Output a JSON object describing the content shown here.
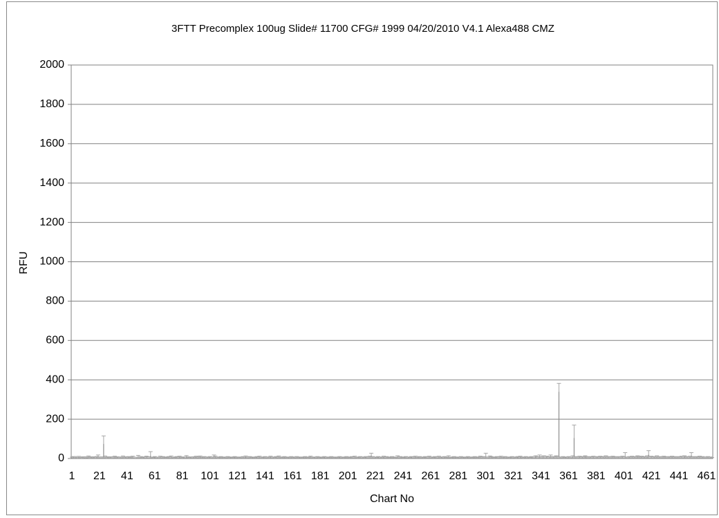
{
  "chart_data": {
    "type": "bar",
    "title": "3FTT Precomplex 100ug Slide# 11700 CFG# 1999 04/20/2010 V4.1 Alexa488  CMZ",
    "x_label": "Chart No",
    "y_label": "RFU",
    "categories": [
      "1",
      null,
      null,
      null,
      null,
      null,
      null,
      null,
      null,
      null,
      null,
      null,
      null,
      null,
      null,
      null,
      null,
      null,
      null,
      null,
      "21",
      null,
      null,
      null,
      null,
      null,
      null,
      null,
      null,
      null,
      null,
      null,
      null,
      null,
      null,
      null,
      null,
      null,
      null,
      null,
      "41",
      null,
      null,
      null,
      null,
      null,
      null,
      null,
      null,
      null,
      null,
      null,
      null,
      null,
      null,
      null,
      null,
      null,
      null,
      null,
      "61",
      null,
      null,
      null,
      null,
      null,
      null,
      null,
      null,
      null,
      null,
      null,
      null,
      null,
      null,
      null,
      null,
      null,
      null,
      null,
      "81",
      null,
      null,
      null,
      null,
      null,
      null,
      null,
      null,
      null,
      null,
      null,
      null,
      null,
      null,
      null,
      null,
      null,
      null,
      null,
      "101",
      null,
      null,
      null,
      null,
      null,
      null,
      null,
      null,
      null,
      null,
      null,
      null,
      null,
      null,
      null,
      null,
      null,
      null,
      null,
      "121",
      null,
      null,
      null,
      null,
      null,
      null,
      null,
      null,
      null,
      null,
      null,
      null,
      null,
      null,
      null,
      null,
      null,
      null,
      null,
      "141",
      null,
      null,
      null,
      null,
      null,
      null,
      null,
      null,
      null,
      null,
      null,
      null,
      null,
      null,
      null,
      null,
      null,
      null,
      null,
      "161",
      null,
      null,
      null,
      null,
      null,
      null,
      null,
      null,
      null,
      null,
      null,
      null,
      null,
      null,
      null,
      null,
      null,
      null,
      null,
      "181",
      null,
      null,
      null,
      null,
      null,
      null,
      null,
      null,
      null,
      null,
      null,
      null,
      null,
      null,
      null,
      null,
      null,
      null,
      null,
      "201",
      null,
      null,
      null,
      null,
      null,
      null,
      null,
      null,
      null,
      null,
      null,
      null,
      null,
      null,
      null,
      null,
      null,
      null,
      null,
      "221",
      null,
      null,
      null,
      null,
      null,
      null,
      null,
      null,
      null,
      null,
      null,
      null,
      null,
      null,
      null,
      null,
      null,
      null,
      null,
      "241",
      null,
      null,
      null,
      null,
      null,
      null,
      null,
      null,
      null,
      null,
      null,
      null,
      null,
      null,
      null,
      null,
      null,
      null,
      null,
      "261",
      null,
      null,
      null,
      null,
      null,
      null,
      null,
      null,
      null,
      null,
      null,
      null,
      null,
      null,
      null,
      null,
      null,
      null,
      null,
      "281",
      null,
      null,
      null,
      null,
      null,
      null,
      null,
      null,
      null,
      null,
      null,
      null,
      null,
      null,
      null,
      null,
      null,
      null,
      null,
      "301",
      null,
      null,
      null,
      null,
      null,
      null,
      null,
      null,
      null,
      null,
      null,
      null,
      null,
      null,
      null,
      null,
      null,
      null,
      null,
      "321",
      null,
      null,
      null,
      null,
      null,
      null,
      null,
      null,
      null,
      null,
      null,
      null,
      null,
      null,
      null,
      null,
      null,
      null,
      null,
      "341",
      null,
      null,
      null,
      null,
      null,
      null,
      null,
      null,
      null,
      null,
      null,
      null,
      null,
      null,
      null,
      null,
      null,
      null,
      null,
      "361",
      null,
      null,
      null,
      null,
      null,
      null,
      null,
      null,
      null,
      null,
      null,
      null,
      null,
      null,
      null,
      null,
      null,
      null,
      null,
      "381",
      null,
      null,
      null,
      null,
      null,
      null,
      null,
      null,
      null,
      null,
      null,
      null,
      null,
      null,
      null,
      null,
      null,
      null,
      null,
      "401",
      null,
      null,
      null,
      null,
      null,
      null,
      null,
      null,
      null,
      null,
      null,
      null,
      null,
      null,
      null,
      null,
      null,
      null,
      null,
      "421",
      null,
      null,
      null,
      null,
      null,
      null,
      null,
      null,
      null,
      null,
      null,
      null,
      null,
      null,
      null,
      null,
      null,
      null,
      null,
      "441",
      null,
      null,
      null,
      null,
      null,
      null,
      null,
      null,
      null,
      null,
      null,
      null,
      null,
      null,
      null,
      null,
      null,
      null,
      null,
      "461",
      null,
      null,
      null,
      null
    ],
    "values": [
      4,
      6,
      3,
      5,
      2,
      7,
      4,
      3,
      5,
      6,
      2,
      4,
      8,
      3,
      5,
      4,
      6,
      3,
      7,
      12,
      5,
      4,
      6,
      75,
      8,
      3,
      5,
      4,
      6,
      3,
      5,
      7,
      4,
      6,
      3,
      5,
      4,
      8,
      3,
      5,
      4,
      6,
      3,
      5,
      7,
      4,
      3,
      5,
      10,
      4,
      6,
      3,
      5,
      4,
      7,
      6,
      5,
      15,
      4,
      3,
      6,
      4,
      5,
      3,
      7,
      4,
      6,
      5,
      3,
      4,
      6,
      5,
      8,
      4,
      3,
      5,
      6,
      4,
      7,
      5,
      3,
      5,
      4,
      9,
      6,
      3,
      5,
      4,
      6,
      3,
      7,
      4,
      5,
      8,
      3,
      5,
      6,
      4,
      5,
      3,
      6,
      4,
      5,
      10,
      7,
      4,
      3,
      5,
      6,
      4,
      3,
      5,
      4,
      6,
      3,
      5,
      4,
      3,
      6,
      5,
      4,
      3,
      5,
      4,
      6,
      3,
      8,
      5,
      4,
      6,
      3,
      5,
      4,
      3,
      6,
      5,
      7,
      4,
      3,
      5,
      6,
      4,
      5,
      3,
      7,
      4,
      5,
      3,
      6,
      4,
      8,
      5,
      3,
      4,
      6,
      5,
      3,
      4,
      5,
      6,
      3,
      5,
      4,
      6,
      3,
      5,
      4,
      3,
      5,
      6,
      4,
      3,
      5,
      7,
      4,
      3,
      5,
      4,
      6,
      3,
      5,
      4,
      3,
      6,
      4,
      5,
      3,
      4,
      6,
      5,
      3,
      4,
      5,
      3,
      6,
      4,
      5,
      3,
      4,
      6,
      5,
      3,
      4,
      6,
      5,
      7,
      4,
      3,
      5,
      6,
      4,
      5,
      3,
      6,
      4,
      5,
      7,
      15,
      6,
      4,
      5,
      3,
      6,
      4,
      5,
      3,
      7,
      4,
      6,
      5,
      3,
      4,
      6,
      5,
      3,
      4,
      8,
      5,
      6,
      4,
      3,
      5,
      6,
      4,
      5,
      3,
      6,
      4,
      5,
      7,
      3,
      4,
      6,
      5,
      4,
      3,
      6,
      5,
      4,
      7,
      5,
      4,
      3,
      6,
      5,
      4,
      7,
      3,
      5,
      4,
      6,
      3,
      5,
      8,
      4,
      3,
      5,
      6,
      4,
      3,
      5,
      4,
      6,
      3,
      5,
      4,
      3,
      6,
      5,
      4,
      3,
      5,
      6,
      4,
      3,
      5,
      7,
      4,
      6,
      5,
      12,
      4,
      5,
      8,
      6,
      4,
      3,
      5,
      6,
      4,
      5,
      7,
      3,
      4,
      6,
      5,
      4,
      3,
      5,
      6,
      4,
      5,
      3,
      6,
      4,
      7,
      5,
      3,
      4,
      6,
      5,
      4,
      3,
      6,
      5,
      4,
      8,
      6,
      5,
      10,
      6,
      5,
      8,
      4,
      7,
      5,
      6,
      10,
      4,
      6,
      5,
      8,
      6,
      340,
      5,
      4,
      6,
      3,
      5,
      4,
      6,
      5,
      4,
      8,
      105,
      6,
      5,
      4,
      7,
      5,
      6,
      4,
      8,
      6,
      5,
      4,
      6,
      5,
      7,
      4,
      5,
      6,
      4,
      7,
      5,
      6,
      4,
      8,
      5,
      6,
      4,
      5,
      7,
      6,
      4,
      5,
      6,
      4,
      5,
      7,
      6,
      10,
      5,
      4,
      6,
      5,
      7,
      4,
      6,
      5,
      8,
      6,
      4,
      7,
      5,
      6,
      4,
      8,
      20,
      6,
      7,
      5,
      6,
      4,
      8,
      5,
      6,
      4,
      5,
      7,
      6,
      4,
      5,
      6,
      4,
      7,
      5,
      6,
      4,
      5,
      6,
      5,
      7,
      4,
      8,
      6,
      5,
      4,
      7,
      15,
      6,
      5,
      4,
      6,
      5,
      7,
      4,
      6,
      5,
      4,
      5,
      6,
      4,
      5,
      3
    ],
    "errors": [
      3,
      4,
      2,
      5,
      3,
      4,
      2,
      3,
      4,
      3,
      2,
      4,
      5,
      3,
      4,
      2,
      3,
      4,
      3,
      6,
      3,
      4,
      2,
      40,
      5,
      3,
      4,
      2,
      3,
      4,
      3,
      5,
      2,
      3,
      4,
      3,
      2,
      5,
      3,
      4,
      3,
      4,
      2,
      3,
      5,
      3,
      4,
      2,
      6,
      3,
      4,
      2,
      3,
      4,
      5,
      3,
      4,
      20,
      3,
      2,
      4,
      3,
      2,
      3,
      5,
      3,
      4,
      3,
      2,
      3,
      4,
      3,
      5,
      3,
      2,
      3,
      4,
      3,
      5,
      3,
      2,
      3,
      4,
      6,
      3,
      2,
      3,
      4,
      3,
      2,
      5,
      3,
      4,
      5,
      2,
      3,
      4,
      3,
      3,
      2,
      4,
      3,
      3,
      8,
      5,
      3,
      2,
      3,
      4,
      3,
      2,
      3,
      3,
      4,
      2,
      3,
      3,
      2,
      4,
      3,
      3,
      2,
      3,
      3,
      4,
      2,
      5,
      3,
      3,
      4,
      2,
      3,
      3,
      2,
      4,
      3,
      5,
      3,
      2,
      3,
      4,
      3,
      3,
      2,
      5,
      3,
      3,
      2,
      4,
      3,
      5,
      3,
      2,
      3,
      4,
      3,
      2,
      3,
      3,
      4,
      2,
      3,
      3,
      4,
      2,
      3,
      3,
      2,
      3,
      4,
      3,
      2,
      3,
      5,
      3,
      2,
      3,
      3,
      4,
      2,
      3,
      3,
      2,
      4,
      3,
      3,
      2,
      3,
      4,
      3,
      2,
      3,
      3,
      2,
      4,
      3,
      3,
      2,
      3,
      4,
      3,
      2,
      3,
      4,
      3,
      5,
      3,
      2,
      3,
      4,
      3,
      3,
      2,
      4,
      3,
      3,
      5,
      12,
      4,
      3,
      3,
      2,
      4,
      3,
      3,
      2,
      5,
      3,
      4,
      3,
      2,
      3,
      4,
      3,
      2,
      3,
      6,
      3,
      4,
      3,
      2,
      3,
      4,
      3,
      3,
      2,
      4,
      3,
      3,
      5,
      2,
      3,
      4,
      3,
      3,
      2,
      4,
      3,
      3,
      5,
      3,
      3,
      2,
      4,
      3,
      3,
      5,
      2,
      3,
      3,
      4,
      2,
      3,
      6,
      3,
      2,
      3,
      4,
      3,
      2,
      3,
      3,
      4,
      2,
      3,
      3,
      2,
      4,
      3,
      3,
      2,
      3,
      4,
      3,
      2,
      3,
      5,
      3,
      4,
      3,
      15,
      3,
      3,
      5,
      4,
      3,
      2,
      3,
      4,
      3,
      3,
      5,
      2,
      3,
      4,
      3,
      3,
      2,
      3,
      4,
      3,
      3,
      2,
      4,
      3,
      5,
      3,
      2,
      3,
      4,
      3,
      3,
      2,
      4,
      3,
      3,
      6,
      4,
      3,
      8,
      4,
      3,
      6,
      3,
      5,
      3,
      4,
      8,
      3,
      4,
      3,
      6,
      4,
      42,
      3,
      3,
      4,
      2,
      3,
      3,
      4,
      3,
      3,
      6,
      65,
      4,
      3,
      3,
      5,
      3,
      4,
      3,
      6,
      4,
      3,
      3,
      4,
      3,
      5,
      3,
      3,
      4,
      3,
      5,
      3,
      4,
      3,
      6,
      3,
      4,
      3,
      3,
      5,
      4,
      3,
      3,
      4,
      3,
      3,
      5,
      4,
      20,
      3,
      3,
      4,
      3,
      5,
      3,
      4,
      3,
      6,
      4,
      3,
      5,
      3,
      4,
      3,
      6,
      20,
      4,
      5,
      3,
      4,
      3,
      6,
      3,
      4,
      3,
      3,
      5,
      4,
      3,
      3,
      4,
      3,
      5,
      3,
      4,
      3,
      3,
      4,
      3,
      5,
      3,
      6,
      4,
      3,
      3,
      5,
      15,
      4,
      3,
      3,
      4,
      3,
      5,
      3,
      4,
      3,
      3,
      3,
      4,
      3,
      3,
      2
    ],
    "color": "#8c8c8c",
    "error_color": "#a6a6a6",
    "ylim": [
      0,
      2000
    ],
    "yticks": [
      0,
      200,
      400,
      600,
      800,
      1000,
      1200,
      1400,
      1600,
      1800,
      2000
    ],
    "grid": true
  }
}
